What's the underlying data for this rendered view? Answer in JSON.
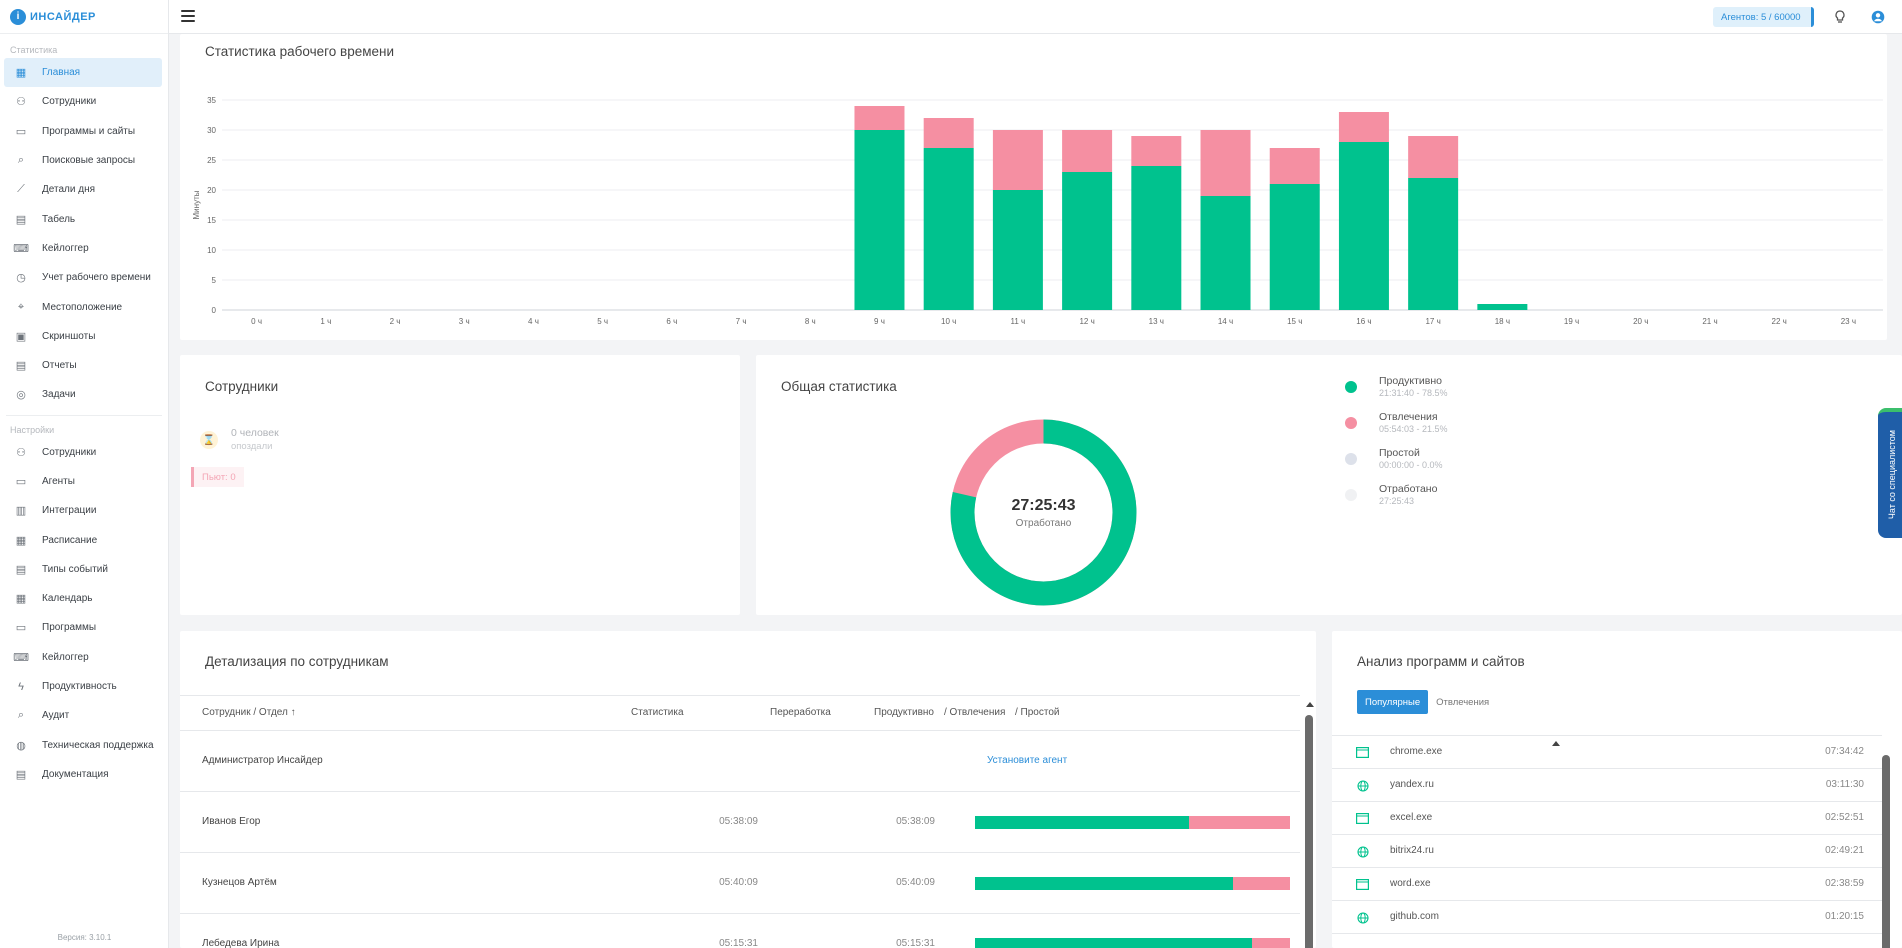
{
  "logo": {
    "mark": "i",
    "text": "ИНСАЙДЕР"
  },
  "sidebar": {
    "section_stats": "Статистика",
    "section_settings": "Настройки",
    "stats_items": [
      {
        "label": "Главная",
        "icon": "dashboard-icon"
      },
      {
        "label": "Сотрудники",
        "icon": "users-icon"
      },
      {
        "label": "Программы и сайты",
        "icon": "window-icon"
      },
      {
        "label": "Поисковые запросы",
        "icon": "search-icon"
      },
      {
        "label": "Детали дня",
        "icon": "trend-icon"
      },
      {
        "label": "Табель",
        "icon": "document-icon"
      },
      {
        "label": "Кейлоггер",
        "icon": "keyboard-icon"
      },
      {
        "label": "Учет рабочего времени",
        "icon": "calendar-clock-icon"
      },
      {
        "label": "Местоположение",
        "icon": "location-icon"
      },
      {
        "label": "Скриншоты",
        "icon": "screen-icon"
      },
      {
        "label": "Отчеты",
        "icon": "report-icon"
      },
      {
        "label": "Задачи",
        "icon": "check-circle-icon"
      }
    ],
    "settings_items": [
      {
        "label": "Сотрудники",
        "icon": "user-settings-icon"
      },
      {
        "label": "Агенты",
        "icon": "monitor-icon"
      },
      {
        "label": "Интеграции",
        "icon": "building-icon"
      },
      {
        "label": "Расписание",
        "icon": "schedule-icon"
      },
      {
        "label": "Типы событий",
        "icon": "event-types-icon"
      },
      {
        "label": "Календарь",
        "icon": "calendar-icon"
      },
      {
        "label": "Программы",
        "icon": "programs-icon"
      },
      {
        "label": "Кейлоггер",
        "icon": "keyboard-icon"
      },
      {
        "label": "Продуктивность",
        "icon": "bolt-icon"
      },
      {
        "label": "Аудит",
        "icon": "audit-icon"
      },
      {
        "label": "Техническая поддержка",
        "icon": "globe-icon"
      },
      {
        "label": "Документация",
        "icon": "docs-icon"
      }
    ],
    "version": "Версия: 3.10.1"
  },
  "topbar": {
    "agents": "Агентов: 5 / 60000"
  },
  "work_time": {
    "title": "Статистика рабочего времени"
  },
  "chart_data": {
    "type": "bar",
    "stacked": true,
    "ylabel": "Минуты",
    "ylim": [
      0,
      35
    ],
    "yticks": [
      0,
      5,
      10,
      15,
      20,
      25,
      30,
      35
    ],
    "grid": true,
    "categories": [
      "0 ч",
      "1 ч",
      "2 ч",
      "3 ч",
      "4 ч",
      "5 ч",
      "6 ч",
      "7 ч",
      "8 ч",
      "9 ч",
      "10 ч",
      "11 ч",
      "12 ч",
      "13 ч",
      "14 ч",
      "15 ч",
      "16 ч",
      "17 ч",
      "18 ч",
      "19 ч",
      "20 ч",
      "21 ч",
      "22 ч",
      "23 ч"
    ],
    "series": [
      {
        "color": "#00c28e",
        "values": [
          0,
          0,
          0,
          0,
          0,
          0,
          0,
          0,
          0,
          30,
          27,
          20,
          23,
          24,
          19,
          21,
          28,
          22,
          1,
          0,
          0,
          0,
          0,
          0
        ]
      },
      {
        "color": "#f58fa2",
        "values": [
          0,
          0,
          0,
          0,
          0,
          0,
          0,
          0,
          0,
          4,
          5,
          10,
          7,
          5,
          11,
          6,
          5,
          7,
          0,
          0,
          0,
          0,
          0,
          0
        ]
      }
    ]
  },
  "employees": {
    "title": "Сотрудники",
    "empty_count": "0 человек",
    "empty_status": "опоздали",
    "absent": "Пьют: 0"
  },
  "general": {
    "title": "Общая статистика",
    "center_value": "27:25:43",
    "center_label": "Отработано",
    "productive_fraction": 0.785,
    "legend": [
      {
        "name": "Продуктивно",
        "sub": "21:31:40 - 78.5%",
        "color": "#00c28e"
      },
      {
        "name": "Отвлечения",
        "sub": "05:54:03 - 21.5%",
        "color": "#f58fa2"
      },
      {
        "name": "Простой",
        "sub": "00:00:00 - 0.0%",
        "color": "#dde1ea"
      },
      {
        "name": "Отработано",
        "sub": "27:25:43",
        "color": "#f0f1f3"
      }
    ]
  },
  "chat": {
    "label": "Чат со специалистом"
  },
  "details": {
    "title": "Детализация по сотрудникам",
    "headers": {
      "employee": "Сотрудник / Отдел",
      "sort": "↑",
      "stats": "Статистика",
      "overtime": "Переработка",
      "productive": "Продуктивно",
      "distractions": "/ Отвлечения",
      "idle": "/ Простой"
    },
    "install_link": "Установите агент",
    "rows": [
      {
        "name": "Администратор Инсайдер",
        "stats": "",
        "overtime": "",
        "productive": 0,
        "distraction": 0
      },
      {
        "name": "Иванов Егор",
        "stats": "05:38:09",
        "overtime": "05:38:09",
        "productive": 0.68,
        "distraction": 0.32
      },
      {
        "name": "Кузнецов Артём",
        "stats": "05:40:09",
        "overtime": "05:40:09",
        "productive": 0.82,
        "distraction": 0.18
      },
      {
        "name": "Лебедева Ирина",
        "stats": "05:15:31",
        "overtime": "05:15:31",
        "productive": 0.88,
        "distraction": 0.12
      }
    ]
  },
  "apps": {
    "title": "Анализ программ и сайтов",
    "tab_popular": "Популярные",
    "tab_distractions": "Отвлечения",
    "rows": [
      {
        "name": "chrome.exe",
        "time": "07:34:42",
        "kind": "app"
      },
      {
        "name": "yandex.ru",
        "time": "03:11:30",
        "kind": "site"
      },
      {
        "name": "excel.exe",
        "time": "02:52:51",
        "kind": "app"
      },
      {
        "name": "bitrix24.ru",
        "time": "02:49:21",
        "kind": "site"
      },
      {
        "name": "word.exe",
        "time": "02:38:59",
        "kind": "app"
      },
      {
        "name": "github.com",
        "time": "01:20:15",
        "kind": "site"
      }
    ]
  }
}
